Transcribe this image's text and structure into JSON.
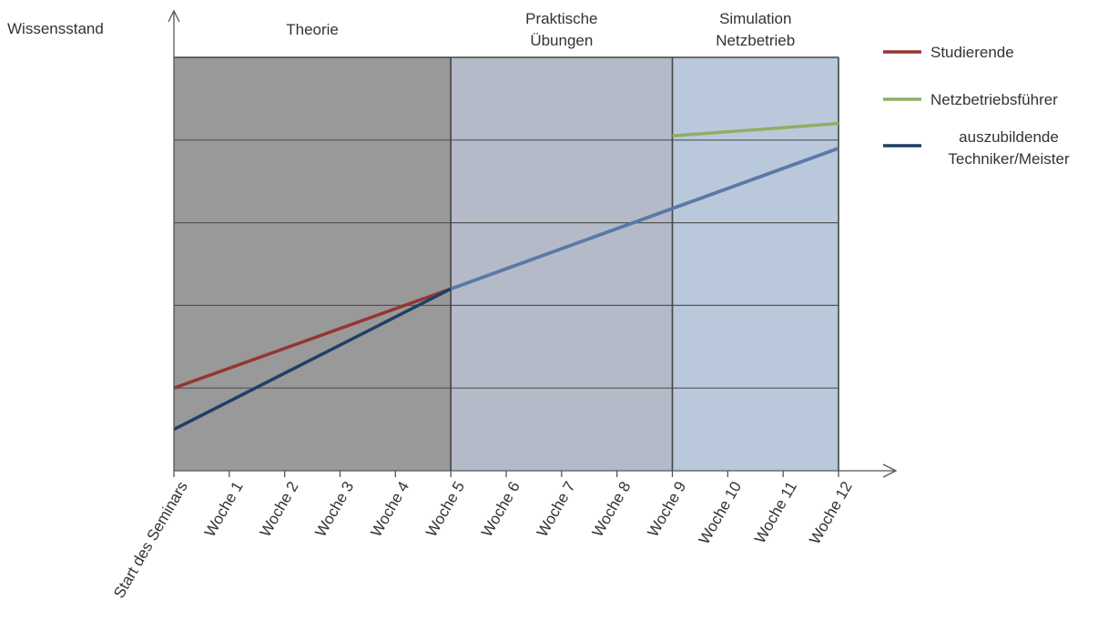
{
  "chart_data": {
    "type": "line",
    "ylabel": "Wissensstand",
    "xlabel": "",
    "categories": [
      "Start des Seminars",
      "Woche 1",
      "Woche 2",
      "Woche 3",
      "Woche 4",
      "Woche 5",
      "Woche 6",
      "Woche 7",
      "Woche 8",
      "Woche 9",
      "Woche 10",
      "Woche 11",
      "Woche 12"
    ],
    "xlim": [
      0,
      12
    ],
    "ylim": [
      0,
      5
    ],
    "grid": true,
    "legend_position": "right",
    "phases": [
      {
        "name": "Theorie",
        "lines": [
          "Theorie"
        ],
        "start": 0,
        "end": 5,
        "color": "#999999"
      },
      {
        "name": "Praktische Übungen",
        "lines": [
          "Praktische",
          "Übungen"
        ],
        "start": 5,
        "end": 9,
        "color": "#b4bac8"
      },
      {
        "name": "Simulation Netzbetrieb",
        "lines": [
          "Simulation",
          "Netzbetrieb"
        ],
        "start": 9,
        "end": 12,
        "color": "#bac8dc"
      }
    ],
    "series": [
      {
        "name": "Studierende",
        "legend_lines": [
          "Studierende"
        ],
        "color": "#943634",
        "x": [
          0,
          5
        ],
        "y": [
          1.0,
          2.2
        ]
      },
      {
        "name": "Netzbetriebsführer",
        "legend_lines": [
          "Netzbetriebsführer"
        ],
        "color": "#8fae62",
        "x": [
          9,
          12
        ],
        "y": [
          4.05,
          4.2
        ]
      },
      {
        "name": "auszubildende Techniker/Meister",
        "legend_lines": [
          "auszubildende",
          "Techniker/Meister"
        ],
        "color": "#1f3f66",
        "x": [
          0,
          5,
          12
        ],
        "y": [
          0.5,
          2.2,
          3.9
        ]
      }
    ]
  }
}
